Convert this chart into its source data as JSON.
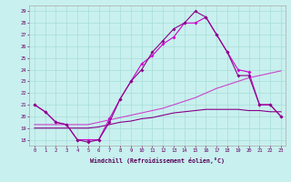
{
  "xlabel": "Windchill (Refroidissement éolien,°C)",
  "xlim_min": -0.5,
  "xlim_max": 23.4,
  "ylim_min": 17.5,
  "ylim_max": 29.5,
  "yticks": [
    18,
    19,
    20,
    21,
    22,
    23,
    24,
    25,
    26,
    27,
    28,
    29
  ],
  "xticks": [
    0,
    1,
    2,
    3,
    4,
    5,
    6,
    7,
    8,
    9,
    10,
    11,
    12,
    13,
    14,
    15,
    16,
    17,
    18,
    19,
    20,
    21,
    22,
    23
  ],
  "bg_color": "#c8f0ee",
  "grid_color": "#a8dcd8",
  "lc1": "#cc00cc",
  "lc2": "#880088",
  "lc3": "#cc44cc",
  "lc4": "#880088",
  "s1x": [
    0,
    1,
    2,
    3,
    4,
    5,
    6,
    7,
    8,
    9,
    10,
    11,
    12,
    13,
    14,
    15,
    16,
    17,
    18,
    19,
    20,
    21,
    22,
    23
  ],
  "s1y": [
    21.0,
    20.4,
    19.5,
    19.3,
    18.0,
    18.0,
    18.0,
    19.8,
    21.5,
    23.0,
    24.5,
    25.2,
    26.2,
    26.8,
    28.0,
    28.0,
    28.5,
    27.0,
    25.5,
    24.0,
    23.8,
    21.0,
    21.0,
    20.0
  ],
  "s2x": [
    0,
    1,
    2,
    3,
    4,
    5,
    6,
    7,
    8,
    9,
    10,
    11,
    12,
    13,
    14,
    15,
    16,
    17,
    18,
    19,
    20,
    21,
    22,
    23
  ],
  "s2y": [
    21.0,
    20.4,
    19.5,
    19.3,
    18.0,
    17.8,
    18.0,
    19.5,
    21.5,
    23.0,
    24.0,
    25.5,
    26.5,
    27.5,
    28.0,
    29.0,
    28.5,
    27.0,
    25.5,
    23.5,
    23.5,
    21.0,
    21.0,
    20.0
  ],
  "s3x": [
    0,
    1,
    2,
    3,
    4,
    5,
    6,
    7,
    8,
    9,
    10,
    11,
    12,
    13,
    14,
    15,
    16,
    17,
    18,
    19,
    20,
    21,
    22,
    23
  ],
  "s3y": [
    19.3,
    19.3,
    19.3,
    19.3,
    19.3,
    19.3,
    19.5,
    19.7,
    19.9,
    20.1,
    20.3,
    20.5,
    20.7,
    21.0,
    21.3,
    21.6,
    22.0,
    22.4,
    22.7,
    23.0,
    23.3,
    23.5,
    23.7,
    23.9
  ],
  "s4x": [
    0,
    1,
    2,
    3,
    4,
    5,
    6,
    7,
    8,
    9,
    10,
    11,
    12,
    13,
    14,
    15,
    16,
    17,
    18,
    19,
    20,
    21,
    22,
    23
  ],
  "s4y": [
    19.0,
    19.0,
    19.0,
    19.0,
    19.0,
    19.0,
    19.1,
    19.3,
    19.5,
    19.6,
    19.8,
    19.9,
    20.1,
    20.3,
    20.4,
    20.5,
    20.6,
    20.6,
    20.6,
    20.6,
    20.5,
    20.5,
    20.4,
    20.4
  ]
}
